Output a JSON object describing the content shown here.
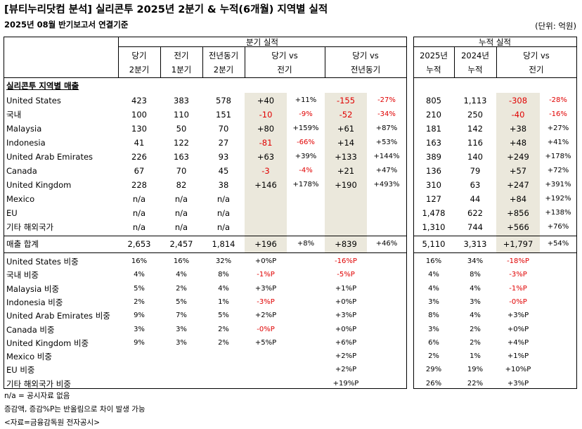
{
  "header": {
    "title": "[뷰티누리닷컴 분석] 실리콘투 2025년 2분기 & 누적(6개월) 지역별 실적",
    "subtitle": "2025년 08월 반기보고서 연결기준",
    "unit": "(단위: 억원)"
  },
  "table": {
    "group_headers": [
      "분기 실적",
      "누적 실적"
    ],
    "columns": [
      [
        "당기",
        "2분기"
      ],
      [
        "전기",
        "1분기"
      ],
      [
        "전년동기",
        "2분기"
      ],
      [
        "당기 vs",
        "전기"
      ],
      [
        "당기 vs",
        "전년동기"
      ],
      [
        "2025년",
        "누적"
      ],
      [
        "2024년",
        "누적"
      ],
      [
        "당기 vs",
        "전기"
      ]
    ],
    "section": "실리콘투 지역별 매출",
    "rows": [
      [
        "United States",
        "423",
        "383",
        "578",
        "+40",
        "+11%",
        "-155",
        "-27%",
        "805",
        "1,113",
        "-308",
        "-28%"
      ],
      [
        "국내",
        "100",
        "110",
        "151",
        "-10",
        "-9%",
        "-52",
        "-34%",
        "210",
        "250",
        "-40",
        "-16%"
      ],
      [
        "Malaysia",
        "130",
        "50",
        "70",
        "+80",
        "+159%",
        "+61",
        "+87%",
        "181",
        "142",
        "+38",
        "+27%"
      ],
      [
        "Indonesia",
        "41",
        "122",
        "27",
        "-81",
        "-66%",
        "+14",
        "+53%",
        "163",
        "116",
        "+48",
        "+41%"
      ],
      [
        "United Arab Emirates",
        "226",
        "163",
        "93",
        "+63",
        "+39%",
        "+133",
        "+144%",
        "389",
        "140",
        "+249",
        "+178%"
      ],
      [
        "Canada",
        "67",
        "70",
        "45",
        "-3",
        "-4%",
        "+21",
        "+47%",
        "136",
        "79",
        "+57",
        "+72%"
      ],
      [
        "United Kingdom",
        "228",
        "82",
        "38",
        "+146",
        "+178%",
        "+190",
        "+493%",
        "310",
        "63",
        "+247",
        "+391%"
      ],
      [
        "Mexico",
        "n/a",
        "n/a",
        "n/a",
        null,
        null,
        null,
        null,
        "127",
        "44",
        "+84",
        "+192%"
      ],
      [
        "EU",
        "n/a",
        "n/a",
        "n/a",
        null,
        null,
        null,
        null,
        "1,478",
        "622",
        "+856",
        "+138%"
      ],
      [
        "기타 해외국가",
        "n/a",
        "n/a",
        "n/a",
        null,
        null,
        null,
        null,
        "1,310",
        "744",
        "+566",
        "+76%"
      ]
    ],
    "total": [
      "매출 합계",
      "2,653",
      "2,457",
      "1,814",
      "+196",
      "+8%",
      "+839",
      "+46%",
      "5,110",
      "3,313",
      "+1,797",
      "+54%"
    ],
    "share_rows": [
      [
        "United States 비중",
        "16%",
        "16%",
        "32%",
        "+0%P",
        null,
        "-16%P",
        null,
        "16%",
        "34%",
        "-18%P",
        null
      ],
      [
        "국내 비중",
        "4%",
        "4%",
        "8%",
        "-1%P",
        null,
        "-5%P",
        null,
        "4%",
        "8%",
        "-3%P",
        null
      ],
      [
        "Malaysia 비중",
        "5%",
        "2%",
        "4%",
        "+3%P",
        null,
        "+1%P",
        null,
        "4%",
        "4%",
        "-1%P",
        null
      ],
      [
        "Indonesia 비중",
        "2%",
        "5%",
        "1%",
        "-3%P",
        null,
        "+0%P",
        null,
        "3%",
        "3%",
        "-0%P",
        null
      ],
      [
        "United Arab Emirates 비중",
        "9%",
        "7%",
        "5%",
        "+2%P",
        null,
        "+3%P",
        null,
        "8%",
        "4%",
        "+3%P",
        null
      ],
      [
        "Canada 비중",
        "3%",
        "3%",
        "2%",
        "-0%P",
        null,
        "+0%P",
        null,
        "3%",
        "2%",
        "+0%P",
        null
      ],
      [
        "United Kingdom 비중",
        "9%",
        "3%",
        "2%",
        "+5%P",
        null,
        "+6%P",
        null,
        "6%",
        "2%",
        "+4%P",
        null
      ],
      [
        "Mexico 비중",
        null,
        null,
        null,
        null,
        null,
        "+2%P",
        null,
        "2%",
        "1%",
        "+1%P",
        null
      ],
      [
        "EU 비중",
        null,
        null,
        null,
        null,
        null,
        "+2%P",
        null,
        "29%",
        "19%",
        "+10%P",
        null
      ],
      [
        "기타 해외국가 비중",
        null,
        null,
        null,
        null,
        null,
        "+19%P",
        null,
        "26%",
        "22%",
        "+3%P",
        null
      ]
    ]
  },
  "notes": [
    "n/a = 공시자료 없음",
    "증감액, 증감%P는 반올림으로 차이 발생 가능",
    "<자료=금융감독원 전자공시>"
  ]
}
